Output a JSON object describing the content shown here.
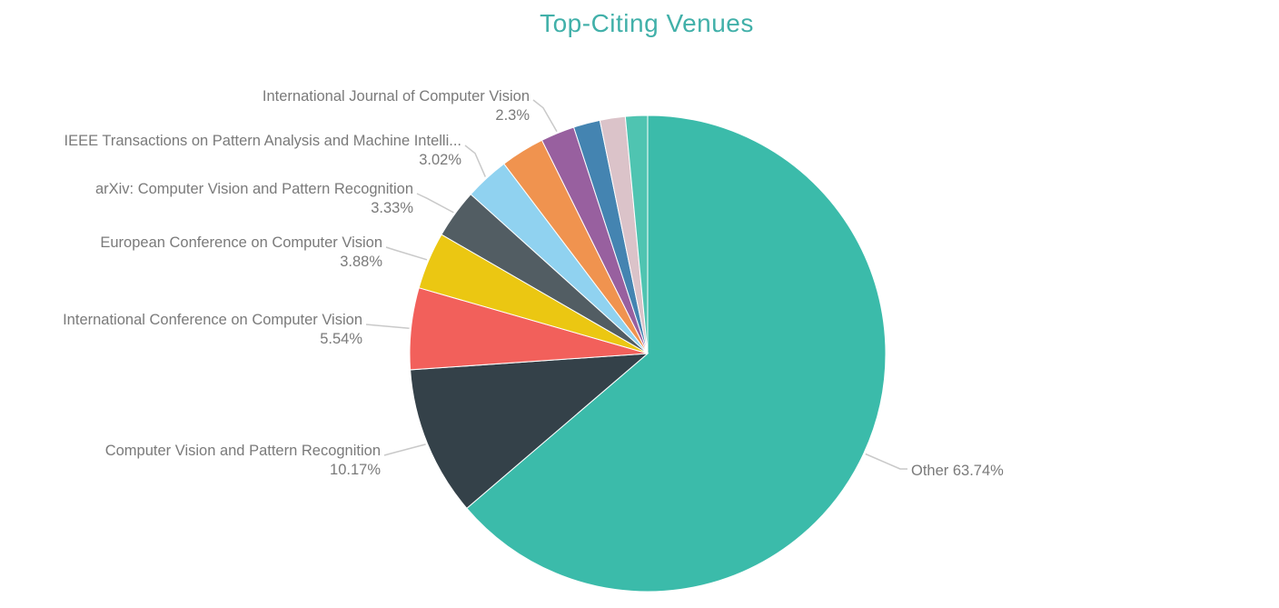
{
  "chart_data": {
    "type": "pie",
    "title": "Top-Citing Venues",
    "legend_position": "none",
    "start_angle_deg": 0,
    "direction": "clockwise",
    "series": [
      {
        "label": "Other",
        "value": 63.74,
        "pct_display": "63.74%",
        "color": "#3BBBAA",
        "label_visible": true
      },
      {
        "label": "Computer Vision and Pattern Recognition",
        "value": 10.17,
        "pct_display": "10.17%",
        "color": "#344149",
        "label_visible": true
      },
      {
        "label": "International Conference on Computer Vision",
        "value": 5.54,
        "pct_display": "5.54%",
        "color": "#F2605B",
        "label_visible": true
      },
      {
        "label": "European Conference on Computer Vision",
        "value": 3.88,
        "pct_display": "3.88%",
        "color": "#EBC712",
        "label_visible": true
      },
      {
        "label": "arXiv: Computer Vision and Pattern Recognition",
        "value": 3.33,
        "pct_display": "3.33%",
        "color": "#525D63",
        "label_visible": true
      },
      {
        "label": "IEEE Transactions on Pattern Analysis and Machine Intelli...",
        "value": 3.02,
        "pct_display": "3.02%",
        "color": "#90D2F0",
        "label_visible": true
      },
      {
        "label": "",
        "value": 2.99,
        "pct_display": "",
        "color": "#F0934F",
        "label_visible": false
      },
      {
        "label": "International Journal of Computer Vision",
        "value": 2.3,
        "pct_display": "2.3%",
        "color": "#98609F",
        "label_visible": true
      },
      {
        "label": "",
        "value": 1.81,
        "pct_display": "",
        "color": "#4484B1",
        "label_visible": false
      },
      {
        "label": "",
        "value": 1.72,
        "pct_display": "",
        "color": "#DBC3C9",
        "label_visible": false
      },
      {
        "label": "",
        "value": 1.5,
        "pct_display": "",
        "color": "#4FC4B1",
        "label_visible": false
      }
    ]
  },
  "colors": {
    "title": "#41B0A9",
    "label_text": "#7A7A7A",
    "leader_line": "#C9C9C9",
    "background": "#FFFFFF"
  }
}
